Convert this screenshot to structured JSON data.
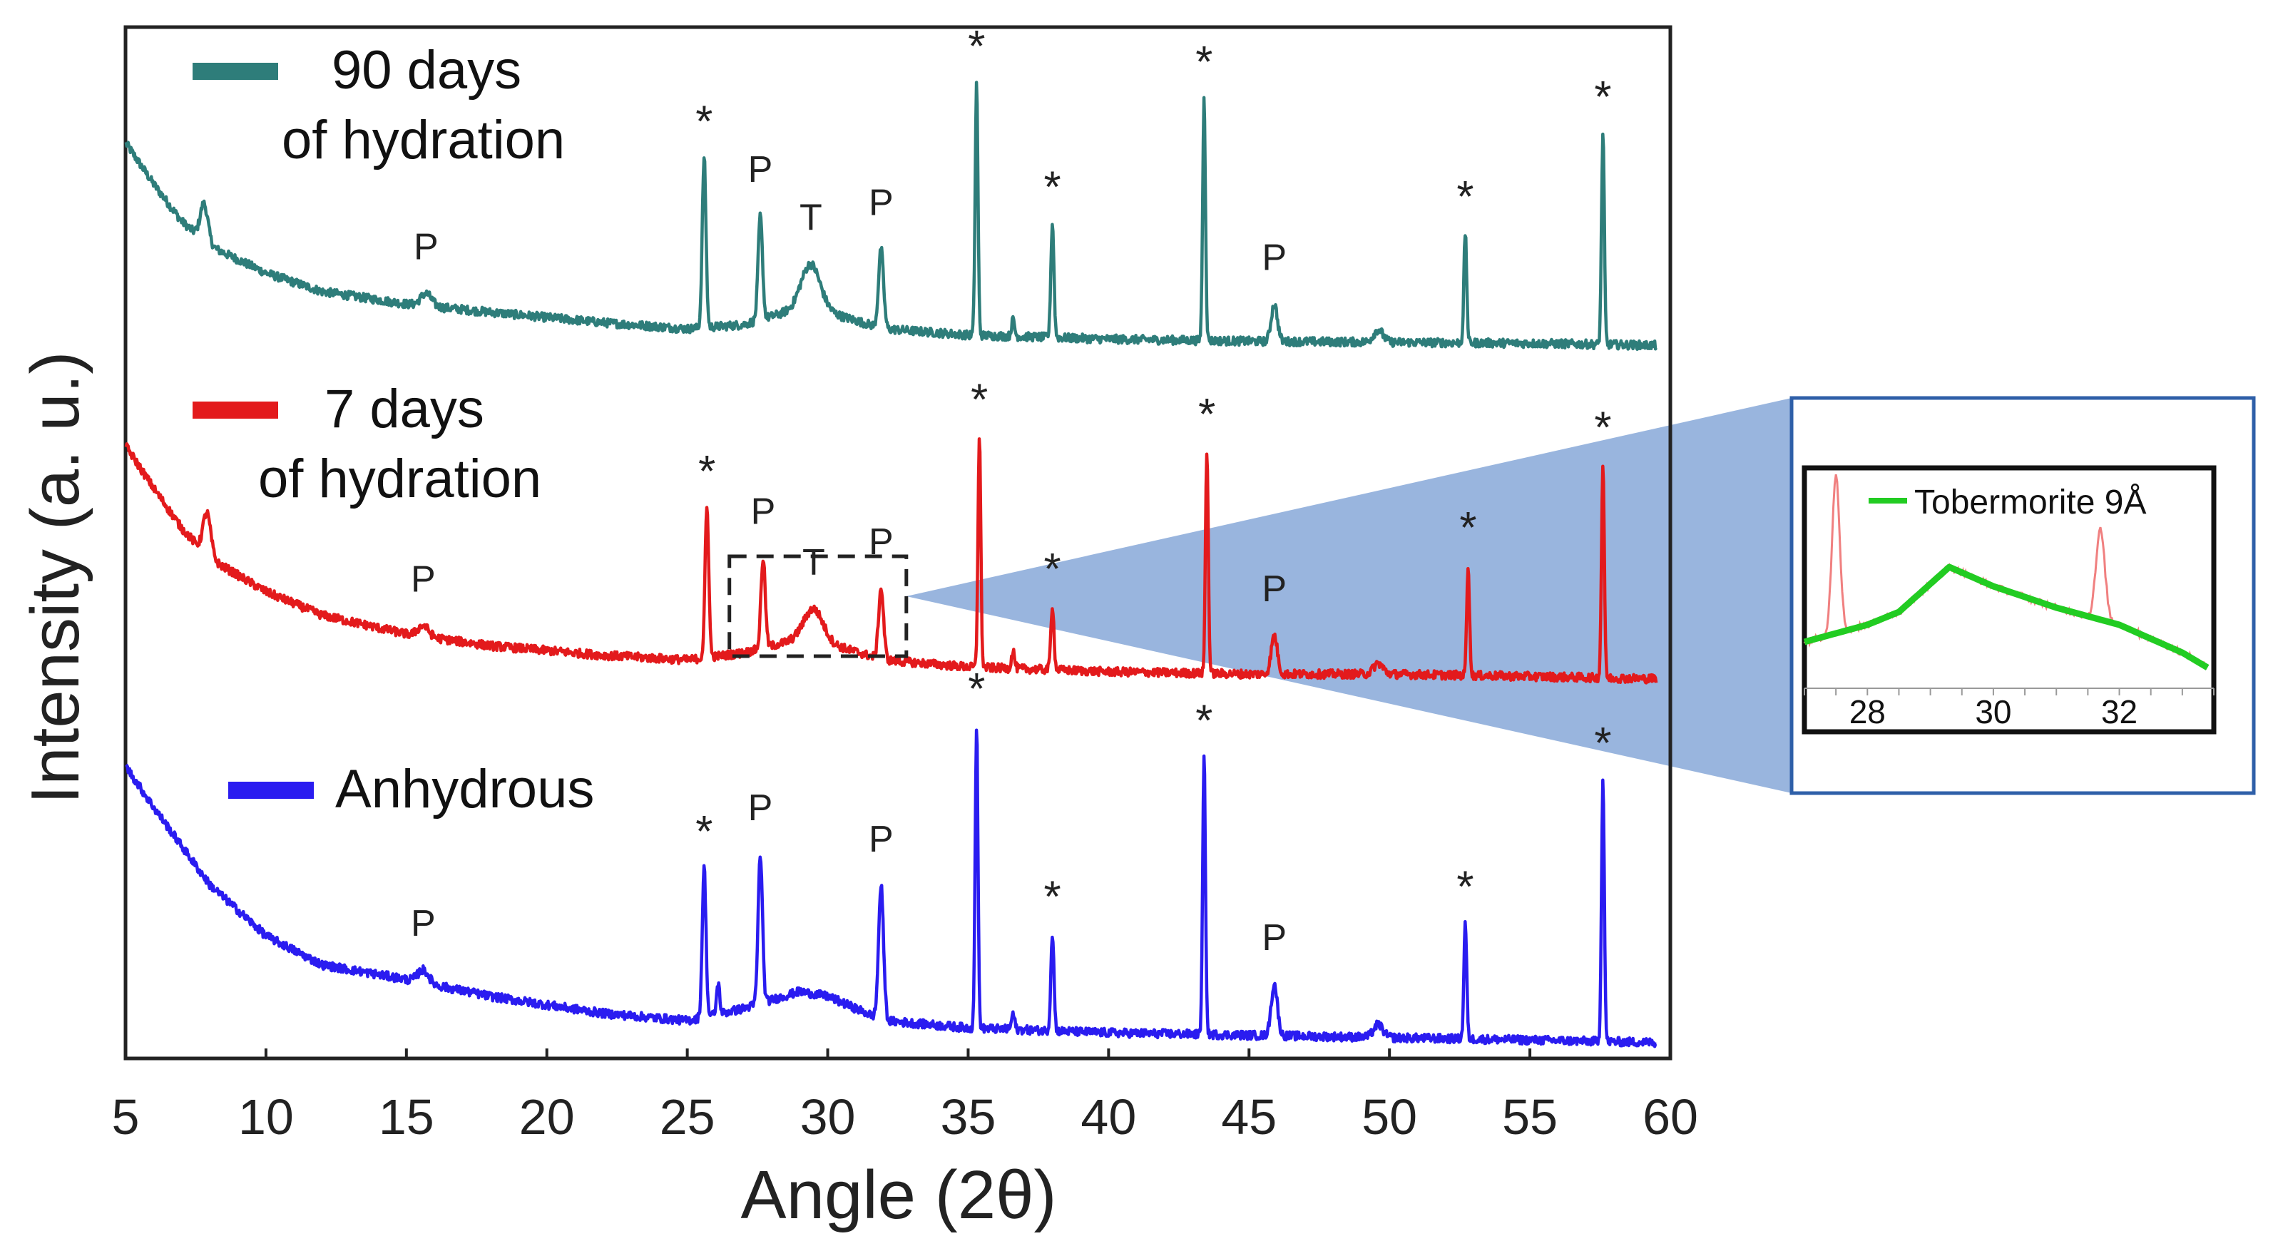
{
  "chart_data": {
    "type": "line",
    "xlabel": "Angle (2θ)",
    "ylabel": "Intensity (a. u.)",
    "xlim": [
      5,
      60
    ],
    "xticks": [
      "5",
      "10",
      "15",
      "20",
      "25",
      "30",
      "35",
      "40",
      "45",
      "50",
      "55",
      "60"
    ],
    "series": [
      {
        "name": "90 days of hydration",
        "legend_line1": "90 days",
        "legend_line2": "of hydration",
        "color": "#2e7d7a",
        "background": [
          [
            5,
            1.0
          ],
          [
            6,
            0.8
          ],
          [
            7,
            0.62
          ],
          [
            8,
            0.5
          ],
          [
            10,
            0.37
          ],
          [
            12,
            0.28
          ],
          [
            15,
            0.22
          ],
          [
            18,
            0.18
          ],
          [
            22,
            0.13
          ],
          [
            25,
            0.1
          ],
          [
            27,
            0.12
          ],
          [
            29,
            0.2
          ],
          [
            30,
            0.18
          ],
          [
            32,
            0.1
          ],
          [
            35,
            0.07
          ],
          [
            40,
            0.05
          ],
          [
            45,
            0.04
          ],
          [
            50,
            0.035
          ],
          [
            55,
            0.03
          ],
          [
            59.5,
            0.02
          ]
        ],
        "peaks": [
          [
            7.8,
            0.18,
            0.25
          ],
          [
            15.7,
            0.06,
            0.35
          ],
          [
            25.6,
            0.82,
            0.12
          ],
          [
            27.6,
            0.5,
            0.14
          ],
          [
            29.4,
            0.22,
            0.6
          ],
          [
            31.9,
            0.38,
            0.16
          ],
          [
            35.3,
            1.22,
            0.09
          ],
          [
            36.6,
            0.08,
            0.1
          ],
          [
            38.0,
            0.55,
            0.1
          ],
          [
            43.4,
            1.17,
            0.09
          ],
          [
            45.9,
            0.18,
            0.2
          ],
          [
            49.6,
            0.06,
            0.3
          ],
          [
            52.7,
            0.53,
            0.09
          ],
          [
            57.6,
            1.02,
            0.09
          ]
        ],
        "annotations": [
          {
            "label": "P",
            "x": 15.7
          },
          {
            "label": "*",
            "x": 25.6
          },
          {
            "label": "P",
            "x": 27.6
          },
          {
            "label": "T",
            "x": 29.4
          },
          {
            "label": "P",
            "x": 31.9
          },
          {
            "label": "*",
            "x": 35.3
          },
          {
            "label": "*",
            "x": 35.3
          },
          {
            "label": "*",
            "x": 38.0
          },
          {
            "label": "*",
            "x": 43.4
          },
          {
            "label": "P",
            "x": 45.9
          },
          {
            "label": "*",
            "x": 52.7
          },
          {
            "label": "*",
            "x": 57.6
          }
        ]
      },
      {
        "name": "7 days of hydration",
        "legend_line1": "7 days",
        "legend_line2": "of hydration",
        "color": "#e31a1c",
        "background": [
          [
            5,
            1.0
          ],
          [
            6,
            0.82
          ],
          [
            7,
            0.65
          ],
          [
            8,
            0.52
          ],
          [
            10,
            0.38
          ],
          [
            12,
            0.28
          ],
          [
            15,
            0.2
          ],
          [
            18,
            0.15
          ],
          [
            22,
            0.11
          ],
          [
            25,
            0.09
          ],
          [
            27,
            0.12
          ],
          [
            29,
            0.18
          ],
          [
            30,
            0.16
          ],
          [
            32,
            0.09
          ],
          [
            35,
            0.06
          ],
          [
            40,
            0.04
          ],
          [
            45,
            0.03
          ],
          [
            50,
            0.03
          ],
          [
            55,
            0.02
          ],
          [
            59.5,
            0.01
          ]
        ],
        "peaks": [
          [
            7.9,
            0.2,
            0.25
          ],
          [
            15.6,
            0.05,
            0.35
          ],
          [
            25.7,
            0.7,
            0.12
          ],
          [
            27.7,
            0.42,
            0.14
          ],
          [
            29.5,
            0.15,
            0.6
          ],
          [
            31.9,
            0.33,
            0.16
          ],
          [
            35.4,
            1.08,
            0.09
          ],
          [
            36.6,
            0.08,
            0.1
          ],
          [
            38.0,
            0.3,
            0.1
          ],
          [
            43.5,
            1.04,
            0.09
          ],
          [
            45.9,
            0.18,
            0.2
          ],
          [
            49.6,
            0.05,
            0.3
          ],
          [
            52.8,
            0.52,
            0.09
          ],
          [
            57.6,
            1.0,
            0.09
          ]
        ],
        "annotations": [
          {
            "label": "P",
            "x": 15.6
          },
          {
            "label": "*",
            "x": 25.7
          },
          {
            "label": "P",
            "x": 27.7
          },
          {
            "label": "T",
            "x": 29.5
          },
          {
            "label": "P",
            "x": 31.9
          },
          {
            "label": "*",
            "x": 35.4
          },
          {
            "label": "*",
            "x": 38.0
          },
          {
            "label": "*",
            "x": 43.5
          },
          {
            "label": "P",
            "x": 45.9
          },
          {
            "label": "*",
            "x": 52.8
          },
          {
            "label": "*",
            "x": 57.6
          }
        ]
      },
      {
        "name": "Anhydrous",
        "legend_line1": "Anhydrous",
        "legend_line2": "",
        "color": "#2a1cf0",
        "background": [
          [
            5,
            1.15
          ],
          [
            6,
            0.98
          ],
          [
            7,
            0.82
          ],
          [
            8,
            0.66
          ],
          [
            10,
            0.45
          ],
          [
            12,
            0.33
          ],
          [
            15,
            0.27
          ],
          [
            18,
            0.2
          ],
          [
            22,
            0.13
          ],
          [
            25,
            0.1
          ],
          [
            27,
            0.15
          ],
          [
            29,
            0.22
          ],
          [
            30,
            0.2
          ],
          [
            32,
            0.1
          ],
          [
            35,
            0.07
          ],
          [
            40,
            0.05
          ],
          [
            45,
            0.04
          ],
          [
            50,
            0.03
          ],
          [
            55,
            0.02
          ],
          [
            59.5,
            0.01
          ]
        ],
        "peaks": [
          [
            15.6,
            0.05,
            0.35
          ],
          [
            25.6,
            0.58,
            0.12
          ],
          [
            26.1,
            0.12,
            0.1
          ],
          [
            27.6,
            0.58,
            0.14
          ],
          [
            31.9,
            0.52,
            0.16
          ],
          [
            35.3,
            1.18,
            0.09
          ],
          [
            36.6,
            0.06,
            0.1
          ],
          [
            38.0,
            0.38,
            0.1
          ],
          [
            43.4,
            1.08,
            0.09
          ],
          [
            45.9,
            0.2,
            0.2
          ],
          [
            49.6,
            0.05,
            0.3
          ],
          [
            52.7,
            0.45,
            0.09
          ],
          [
            57.6,
            1.02,
            0.09
          ]
        ],
        "annotations": [
          {
            "label": "P",
            "x": 15.6
          },
          {
            "label": "*",
            "x": 25.6
          },
          {
            "label": "P",
            "x": 27.6
          },
          {
            "label": "P",
            "x": 31.9
          },
          {
            "label": "*",
            "x": 35.3
          },
          {
            "label": "*",
            "x": 38.0
          },
          {
            "label": "*",
            "x": 43.4
          },
          {
            "label": "P",
            "x": 45.9
          },
          {
            "label": "*",
            "x": 52.7
          },
          {
            "label": "*",
            "x": 57.6
          }
        ]
      }
    ],
    "inset": {
      "xlim": [
        27,
        33.5
      ],
      "xticks": [
        "28",
        "30",
        "32"
      ],
      "legend": "Tobermorite 9Å",
      "fit_color": "#22cc22",
      "raw_color": "#f08080",
      "fit_points": [
        [
          27,
          0.2
        ],
        [
          28,
          0.28
        ],
        [
          28.5,
          0.34
        ],
        [
          29.3,
          0.55
        ],
        [
          30,
          0.46
        ],
        [
          31,
          0.36
        ],
        [
          32,
          0.28
        ],
        [
          33,
          0.15
        ],
        [
          33.4,
          0.08
        ]
      ],
      "raw_peaks": [
        [
          27.5,
          0.75,
          0.06
        ],
        [
          31.7,
          0.42,
          0.07
        ]
      ],
      "zoom_from_x": [
        26.5,
        32.8
      ]
    }
  }
}
